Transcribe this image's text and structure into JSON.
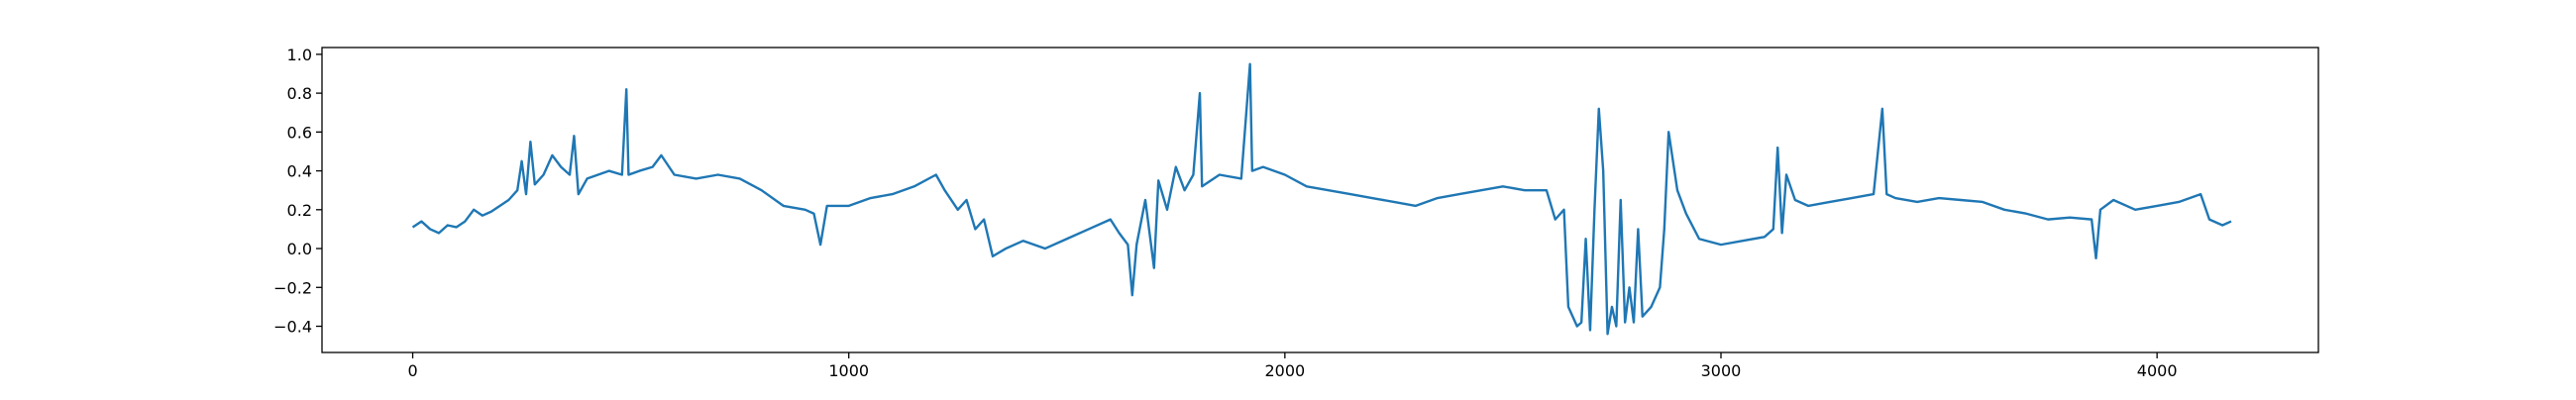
{
  "chart_data": {
    "type": "line",
    "color": "#1f77b4",
    "x": [
      0,
      20,
      40,
      60,
      80,
      100,
      120,
      140,
      160,
      180,
      200,
      220,
      240,
      250,
      260,
      270,
      280,
      300,
      320,
      340,
      360,
      370,
      380,
      400,
      450,
      480,
      490,
      495,
      520,
      550,
      570,
      600,
      650,
      700,
      750,
      800,
      850,
      900,
      920,
      935,
      950,
      1000,
      1050,
      1100,
      1150,
      1200,
      1220,
      1250,
      1270,
      1290,
      1310,
      1330,
      1360,
      1400,
      1450,
      1500,
      1550,
      1600,
      1620,
      1640,
      1650,
      1660,
      1680,
      1700,
      1710,
      1730,
      1750,
      1770,
      1790,
      1805,
      1810,
      1850,
      1900,
      1920,
      1925,
      1950,
      2000,
      2050,
      2100,
      2150,
      2200,
      2250,
      2300,
      2350,
      2400,
      2450,
      2500,
      2550,
      2600,
      2620,
      2640,
      2650,
      2670,
      2680,
      2690,
      2700,
      2710,
      2720,
      2730,
      2740,
      2750,
      2760,
      2770,
      2780,
      2790,
      2800,
      2810,
      2820,
      2840,
      2860,
      2870,
      2880,
      2900,
      2920,
      2950,
      3000,
      3050,
      3100,
      3120,
      3130,
      3140,
      3150,
      3170,
      3200,
      3250,
      3300,
      3350,
      3370,
      3380,
      3400,
      3450,
      3500,
      3550,
      3600,
      3650,
      3700,
      3750,
      3800,
      3850,
      3860,
      3870,
      3900,
      3950,
      4000,
      4050,
      4100,
      4120,
      4150,
      4170
    ],
    "values": [
      0.11,
      0.14,
      0.1,
      0.08,
      0.12,
      0.11,
      0.14,
      0.2,
      0.17,
      0.19,
      0.22,
      0.25,
      0.3,
      0.45,
      0.28,
      0.55,
      0.33,
      0.38,
      0.48,
      0.42,
      0.38,
      0.58,
      0.28,
      0.36,
      0.4,
      0.38,
      0.82,
      0.38,
      0.4,
      0.42,
      0.48,
      0.38,
      0.36,
      0.38,
      0.36,
      0.3,
      0.22,
      0.2,
      0.18,
      0.02,
      0.22,
      0.22,
      0.26,
      0.28,
      0.32,
      0.38,
      0.3,
      0.2,
      0.25,
      0.1,
      0.15,
      -0.04,
      0.0,
      0.04,
      0.0,
      0.05,
      0.1,
      0.15,
      0.08,
      0.02,
      -0.24,
      0.02,
      0.25,
      -0.1,
      0.35,
      0.2,
      0.42,
      0.3,
      0.38,
      0.8,
      0.32,
      0.38,
      0.36,
      0.95,
      0.4,
      0.42,
      0.38,
      0.32,
      0.3,
      0.28,
      0.26,
      0.24,
      0.22,
      0.26,
      0.28,
      0.3,
      0.32,
      0.3,
      0.3,
      0.15,
      0.2,
      -0.3,
      -0.4,
      -0.38,
      0.05,
      -0.42,
      0.2,
      0.72,
      0.4,
      -0.44,
      -0.3,
      -0.4,
      0.25,
      -0.38,
      -0.2,
      -0.38,
      0.1,
      -0.35,
      -0.3,
      -0.2,
      0.1,
      0.6,
      0.3,
      0.18,
      0.05,
      0.02,
      0.04,
      0.06,
      0.1,
      0.52,
      0.08,
      0.38,
      0.25,
      0.22,
      0.24,
      0.26,
      0.28,
      0.72,
      0.28,
      0.26,
      0.24,
      0.26,
      0.25,
      0.24,
      0.2,
      0.18,
      0.15,
      0.16,
      0.15,
      -0.05,
      0.2,
      0.25,
      0.2,
      0.22,
      0.24,
      0.28,
      0.15,
      0.12,
      0.14
    ],
    "xlim": [
      -208,
      4370
    ],
    "ylim": [
      -0.535,
      1.035
    ],
    "xticks": [
      0,
      1000,
      2000,
      3000,
      4000
    ],
    "yticks": [
      {
        "value": -0.4,
        "label": "−0.4"
      },
      {
        "value": -0.2,
        "label": "−0.2"
      },
      {
        "value": 0,
        "label": "0.0"
      },
      0.2,
      0.4,
      0.6,
      0.8,
      {
        "value": 1,
        "label": "1.0"
      }
    ]
  }
}
